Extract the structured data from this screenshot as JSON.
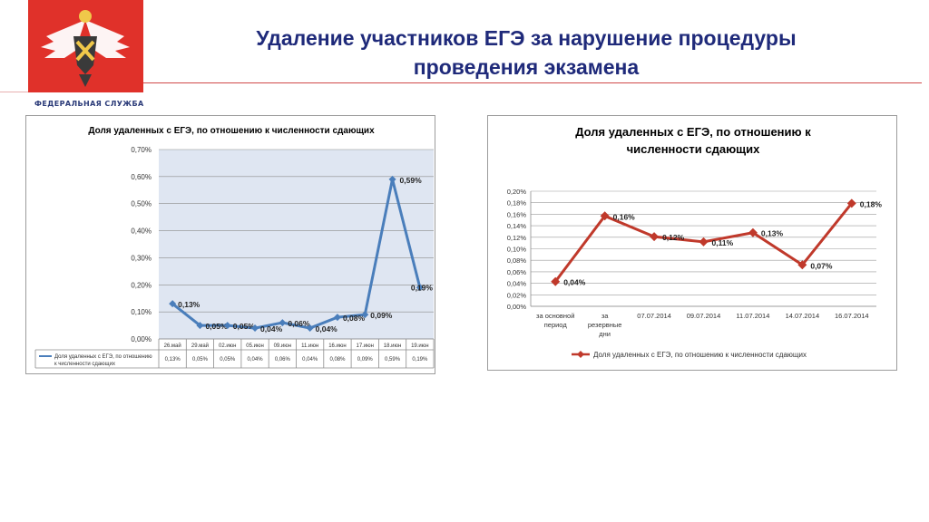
{
  "header": {
    "title_line1": "Удаление участников ЕГЭ за нарушение процедуры",
    "title_line2": "проведения экзамена",
    "logo_text": "ФЕДЕРАЛЬНАЯ СЛУЖБА",
    "logo_icon": "eagle-emblem-icon"
  },
  "colors": {
    "title": "#1f2a7a",
    "logo_bg": "#e0312a",
    "series1": "#4a7ebb",
    "series2": "#c0392b",
    "plot_bg1": "#dfe6f2"
  },
  "chart_data": [
    {
      "type": "line",
      "title": "Доля удаленных с ЕГЭ, по отношению к численности сдающих",
      "categories": [
        "26.май",
        "29.май",
        "02.июн",
        "05.июн",
        "09.июн",
        "11.июн",
        "16.июн",
        "17.июн",
        "18.июн",
        "19.июн"
      ],
      "series": [
        {
          "name": "Доля удаленных с ЕГЭ, по отношению к численности сдающих",
          "values": [
            0.13,
            0.05,
            0.05,
            0.04,
            0.06,
            0.04,
            0.08,
            0.09,
            0.59,
            0.19
          ],
          "labels": [
            "0,13%",
            "0,05%",
            "0,05%",
            "0,04%",
            "0,06%",
            "0,04%",
            "0,08%",
            "0,09%",
            "0,59%",
            "0,19%"
          ],
          "table_values": [
            "0,13%",
            "0,05%",
            "0,05%",
            "0,04%",
            "0,06%",
            "0,04%",
            "0,08%",
            "0,09%",
            "0,59%",
            "0,19%"
          ]
        }
      ],
      "ylim": [
        0,
        0.7
      ],
      "yticks": [
        "0,00%",
        "0,10%",
        "0,20%",
        "0,30%",
        "0,40%",
        "0,50%",
        "0,60%",
        "0,70%"
      ],
      "grid": true,
      "legend": "data-table-bottom"
    },
    {
      "type": "line",
      "title_line1": "Доля удаленных с ЕГЭ, по отношению к",
      "title_line2": "численности сдающих",
      "categories": [
        [
          "за основной",
          "период"
        ],
        [
          "за",
          "резервные",
          "дни"
        ],
        [
          "07.07.2014"
        ],
        [
          "09.07.2014"
        ],
        [
          "11.07.2014"
        ],
        [
          "14.07.2014"
        ],
        [
          "16.07.2014"
        ]
      ],
      "series": [
        {
          "name": "Доля удаленных с ЕГЭ, по отношению к численности сдающих",
          "values": [
            0.043,
            0.157,
            0.121,
            0.112,
            0.128,
            0.072,
            0.179
          ],
          "labels": [
            "0,04%",
            "0,16%",
            "0,12%",
            "0,11%",
            "0,13%",
            "0,07%",
            "0,18%"
          ]
        }
      ],
      "ylim": [
        0,
        0.2
      ],
      "yticks": [
        "0,00%",
        "0,02%",
        "0,04%",
        "0,06%",
        "0,08%",
        "0,10%",
        "0,12%",
        "0,14%",
        "0,16%",
        "0,18%",
        "0,20%"
      ],
      "grid": true,
      "legend": "bottom"
    }
  ]
}
